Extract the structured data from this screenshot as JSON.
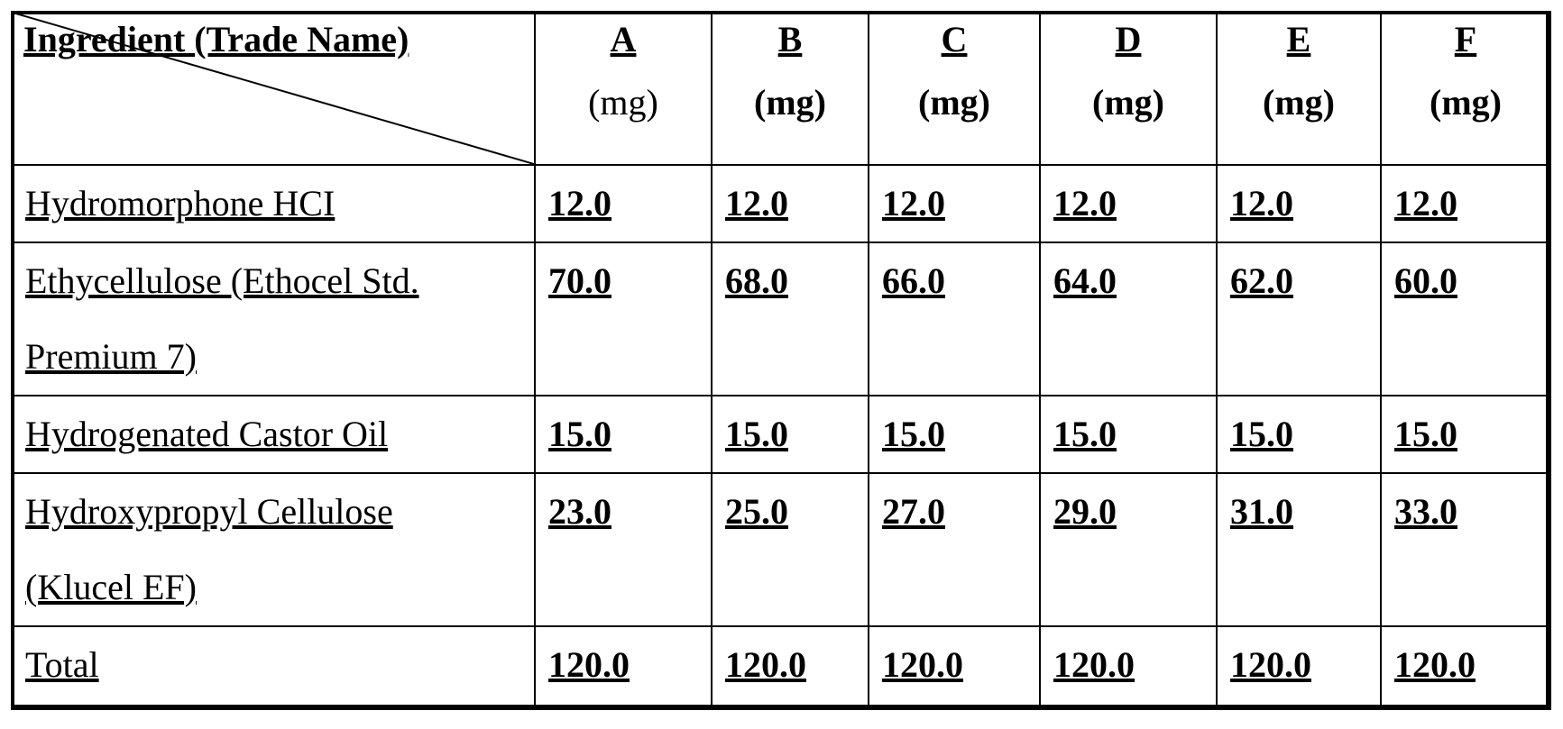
{
  "header": {
    "ingredient_label": "Ingredient (Trade Name)",
    "columns": [
      {
        "letter": "A",
        "unit": "(mg)"
      },
      {
        "letter": "B",
        "unit": "(mg)"
      },
      {
        "letter": "C",
        "unit": "(mg)"
      },
      {
        "letter": "D",
        "unit": "(mg)"
      },
      {
        "letter": "E",
        "unit": "(mg)"
      },
      {
        "letter": "F",
        "unit": "(mg)"
      }
    ]
  },
  "rows": [
    {
      "ingredient_lines": [
        "Hydromorphone HCI"
      ],
      "values": [
        "12.0",
        "12.0",
        "12.0",
        "12.0",
        "12.0",
        "12.0"
      ]
    },
    {
      "ingredient_lines": [
        "Ethycellulose (Ethocel Std.",
        "Premium 7)"
      ],
      "values": [
        "70.0",
        "68.0",
        "66.0",
        "64.0",
        "62.0",
        "60.0"
      ]
    },
    {
      "ingredient_lines": [
        "Hydrogenated Castor Oil"
      ],
      "values": [
        "15.0",
        "15.0",
        "15.0",
        "15.0",
        "15.0",
        "15.0"
      ]
    },
    {
      "ingredient_lines": [
        "Hydroxypropyl Cellulose",
        "(Klucel EF)"
      ],
      "values": [
        "23.0",
        "25.0",
        "27.0",
        "29.0",
        "31.0",
        "33.0"
      ]
    },
    {
      "ingredient_lines": [
        "Total"
      ],
      "values": [
        "120.0",
        "120.0",
        "120.0",
        "120.0",
        "120.0",
        "120.0"
      ]
    }
  ]
}
